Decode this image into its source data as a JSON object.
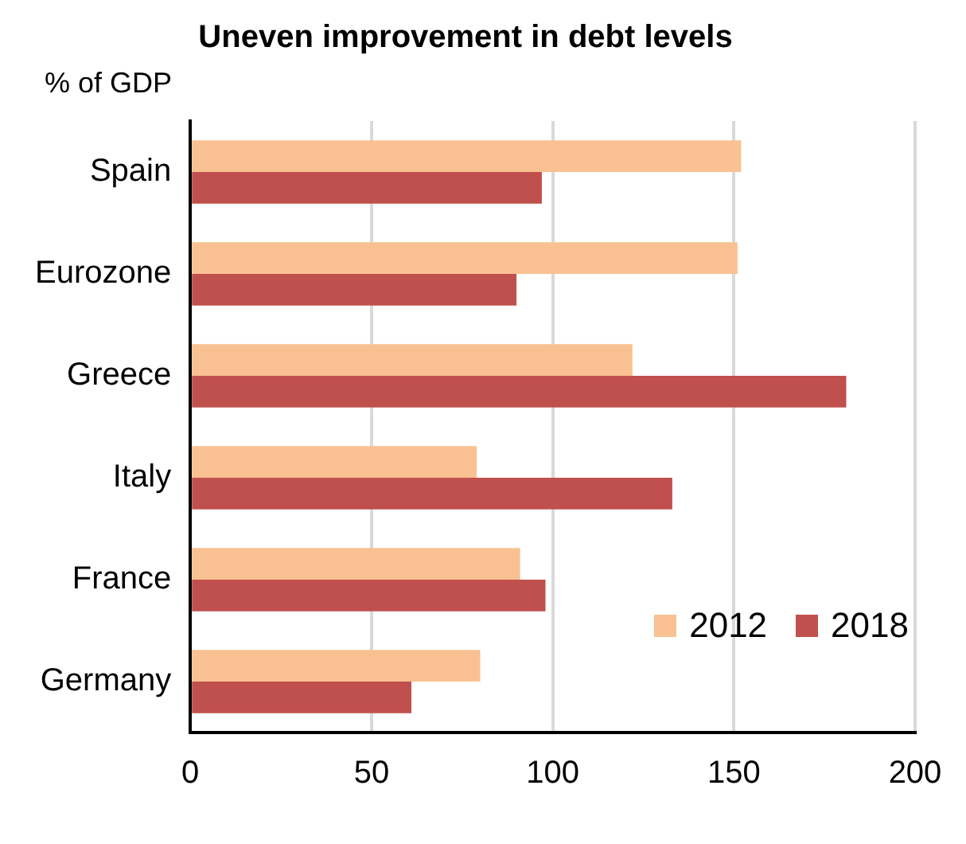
{
  "chart_data": {
    "type": "bar",
    "orientation": "horizontal",
    "title": "Uneven improvement in debt levels",
    "ylabel": "% of GDP",
    "categories": [
      "Spain",
      "Eurozone",
      "Greece",
      "Italy",
      "France",
      "Germany"
    ],
    "series": [
      {
        "name": "2012",
        "color": "#f9c191",
        "values": [
          152,
          151,
          122,
          79,
          91,
          80
        ]
      },
      {
        "name": "2018",
        "color": "#c0504d",
        "values": [
          97,
          90,
          181,
          133,
          98,
          61
        ]
      }
    ],
    "xlim": [
      0,
      200
    ],
    "xticks": [
      0,
      50,
      100,
      150,
      200
    ],
    "grid": "x",
    "legend": "bottom right"
  }
}
